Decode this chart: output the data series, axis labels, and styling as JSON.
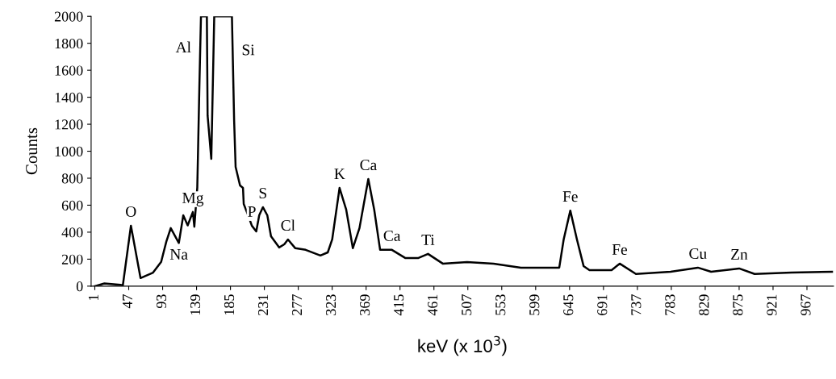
{
  "chart_data": {
    "type": "line",
    "xlabel": "keV (x 10$^{3}$)",
    "ylabel": "Counts",
    "series": [
      {
        "color": "#000000",
        "x": [
          1,
          14,
          36,
          39,
          50,
          63,
          80,
          91,
          98,
          104,
          115,
          121,
          127,
          134,
          136,
          140,
          143,
          145,
          153,
          154,
          159,
          163,
          187,
          190,
          192,
          198,
          202,
          203,
          209,
          214,
          220,
          224,
          229,
          235,
          240,
          251,
          258,
          263,
          273,
          287,
          307,
          317,
          323,
          333,
          342,
          351,
          360,
          372,
          380,
          388,
          404,
          422,
          440,
          453,
          473,
          506,
          542,
          579,
          615,
          631,
          637,
          646,
          655,
          664,
          672,
          702,
          713,
          735,
          782,
          819,
          837,
          875,
          896,
          946,
          1001
        ],
        "values": [
          0,
          20,
          10,
          5,
          448,
          60,
          100,
          180,
          330,
          430,
          320,
          525,
          450,
          550,
          440,
          730,
          1520,
          2000,
          2000,
          1265,
          943,
          2000,
          2000,
          1224,
          884,
          746,
          728,
          609,
          525,
          448,
          406,
          525,
          585,
          525,
          370,
          287,
          310,
          346,
          281,
          269,
          227,
          250,
          346,
          728,
          567,
          281,
          430,
          794,
          567,
          269,
          269,
          209,
          209,
          239,
          167,
          179,
          167,
          137,
          137,
          137,
          346,
          560,
          346,
          149,
          119,
          119,
          167,
          90,
          107,
          137,
          107,
          131,
          90,
          101,
          107
        ]
      }
    ],
    "xlim": [
      -4,
      1003
    ],
    "ylim": [
      0,
      2000
    ],
    "xticks": [
      1,
      47,
      93,
      139,
      185,
      231,
      277,
      323,
      369,
      415,
      461,
      507,
      553,
      599,
      645,
      691,
      737,
      783,
      829,
      875,
      921,
      967
    ],
    "yticks": [
      0,
      200,
      400,
      600,
      800,
      1000,
      1200,
      1400,
      1600,
      1800,
      2000
    ],
    "grid": false,
    "legend": false,
    "marker": "none",
    "line_style": "solid",
    "annotations": [
      {
        "text": "Al",
        "x": 144,
        "y": 1760
      },
      {
        "text": "Si",
        "x": 188,
        "y": 1741
      },
      {
        "text": "O",
        "x": 50,
        "y": 448
      },
      {
        "text": "Na",
        "x": 115,
        "y": 320
      },
      {
        "text": "Mg",
        "x": 134,
        "y": 550
      },
      {
        "text": "P",
        "x": 214,
        "y": 448
      },
      {
        "text": "S",
        "x": 229,
        "y": 585
      },
      {
        "text": "Cl",
        "x": 263,
        "y": 346
      },
      {
        "text": "K",
        "x": 333,
        "y": 728
      },
      {
        "text": "Ca",
        "x": 372,
        "y": 794
      },
      {
        "text": "Ca",
        "x": 404,
        "y": 269
      },
      {
        "text": "Ti",
        "x": 453,
        "y": 239
      },
      {
        "text": "Fe",
        "x": 646,
        "y": 560
      },
      {
        "text": "Fe",
        "x": 713,
        "y": 167
      },
      {
        "text": "Cu",
        "x": 819,
        "y": 137
      },
      {
        "text": "Zn",
        "x": 875,
        "y": 131
      }
    ]
  }
}
